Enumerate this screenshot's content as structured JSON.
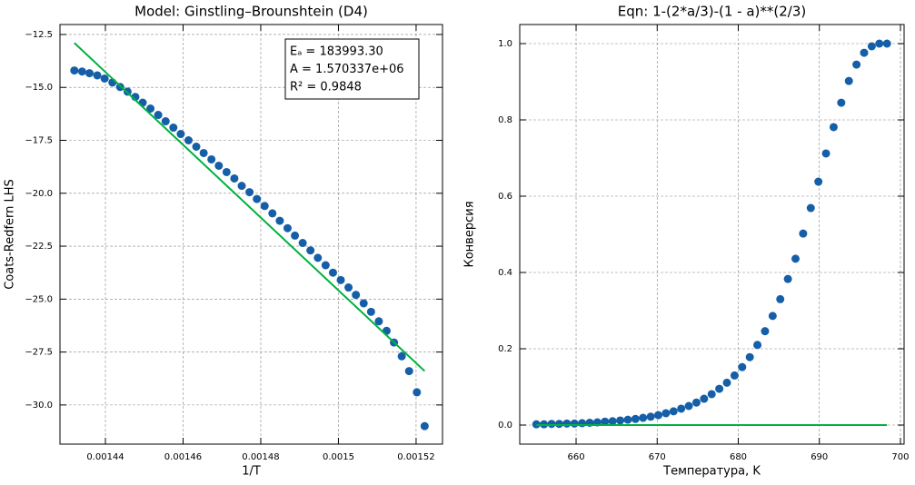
{
  "chart_data": [
    {
      "type": "scatter",
      "title": "Model: Ginstling–Brounshtein (D4)",
      "x_label": "1/T",
      "y_label": "Coats-Redfern LHS",
      "annotation": [
        "Eₐ = 183993.30",
        "A = 1.570337e+06",
        "R² = 0.9848"
      ],
      "xlim": [
        0.0014283,
        0.0015268
      ],
      "ylim": [
        -31.85,
        -12.03
      ],
      "xticks": [
        0.00144,
        0.00146,
        0.00148,
        0.0015,
        0.00152
      ],
      "yticks": [
        {
          "value": -12.5,
          "label": "−12.5"
        },
        {
          "value": -15,
          "label": "−15.0"
        },
        {
          "value": -17.5,
          "label": "−17.5"
        },
        {
          "value": -20,
          "label": "−20.0"
        },
        {
          "value": -22.5,
          "label": "−22.5"
        },
        {
          "value": -25,
          "label": "−25.0"
        },
        {
          "value": -27.5,
          "label": "−27.5"
        },
        {
          "value": -30,
          "label": "−30.0"
        }
      ],
      "grid": true,
      "series": [
        {
          "color": "#155fa8",
          "mode": "markers",
          "x": [
            0.001432,
            0.001434,
            0.0014359,
            0.0014379,
            0.0014398,
            0.0014418,
            0.0014438,
            0.0014457,
            0.0014477,
            0.0014496,
            0.0014516,
            0.0014536,
            0.0014555,
            0.0014575,
            0.0014594,
            0.0014614,
            0.0014634,
            0.0014653,
            0.0014673,
            0.0014692,
            0.0014712,
            0.0014732,
            0.0014751,
            0.0014771,
            0.001479,
            0.001481,
            0.001483,
            0.0014849,
            0.0014869,
            0.0014888,
            0.0014908,
            0.0014928,
            0.0014947,
            0.0014967,
            0.0014986,
            0.0015006,
            0.0015026,
            0.0015045,
            0.0015065,
            0.0015084,
            0.0015104,
            0.0015124,
            0.0015143,
            0.0015163,
            0.0015182,
            0.0015202,
            0.0015222
          ],
          "values": [
            -14.2,
            -14.25,
            -14.33,
            -14.43,
            -14.58,
            -14.77,
            -14.98,
            -15.2,
            -15.45,
            -15.72,
            -16.0,
            -16.3,
            -16.6,
            -16.9,
            -17.2,
            -17.5,
            -17.8,
            -18.1,
            -18.4,
            -18.7,
            -19.0,
            -19.3,
            -19.65,
            -19.95,
            -20.27,
            -20.6,
            -20.95,
            -21.3,
            -21.65,
            -22.0,
            -22.35,
            -22.7,
            -23.05,
            -23.4,
            -23.75,
            -24.1,
            -24.45,
            -24.8,
            -25.2,
            -25.6,
            -26.05,
            -26.5,
            -27.05,
            -27.7,
            -28.4,
            -29.4,
            -31.0
          ]
        },
        {
          "color": "#00b140",
          "mode": "line",
          "x": [
            0.001432,
            0.0015222
          ],
          "values": [
            -12.9,
            -28.4
          ]
        }
      ]
    },
    {
      "type": "scatter",
      "title": "Eqn: 1-(2*a/3)-(1 - a)**(2/3)",
      "x_label": "Температура, K",
      "y_label": "Конверсия",
      "xlim": [
        653.05,
        700.45
      ],
      "ylim": [
        -0.05,
        1.05
      ],
      "xticks": [
        660,
        670,
        680,
        690,
        700
      ],
      "yticks": [
        {
          "value": 0,
          "label": "0.0"
        },
        0.2,
        0.4,
        0.6,
        0.8,
        {
          "value": 1,
          "label": "1.0"
        }
      ],
      "grid": true,
      "series": [
        {
          "color": "#155fa8",
          "mode": "markers",
          "x": [
            655.1,
            656.04,
            656.98,
            657.92,
            658.86,
            659.8,
            660.74,
            661.68,
            662.62,
            663.56,
            664.5,
            665.44,
            666.38,
            667.32,
            668.26,
            669.2,
            670.14,
            671.08,
            672.02,
            672.96,
            673.9,
            674.84,
            675.78,
            676.72,
            677.66,
            678.6,
            679.54,
            680.48,
            681.42,
            682.36,
            683.3,
            684.24,
            685.18,
            686.12,
            687.06,
            688.0,
            688.94,
            689.88,
            690.82,
            691.76,
            692.7,
            693.64,
            694.58,
            695.52,
            696.46,
            697.4,
            698.34
          ],
          "values": [
            0.002,
            0.002,
            0.003,
            0.003,
            0.004,
            0.004,
            0.005,
            0.006,
            0.007,
            0.009,
            0.01,
            0.012,
            0.014,
            0.016,
            0.019,
            0.022,
            0.026,
            0.031,
            0.036,
            0.043,
            0.05,
            0.059,
            0.069,
            0.081,
            0.095,
            0.111,
            0.13,
            0.152,
            0.178,
            0.21,
            0.246,
            0.286,
            0.33,
            0.383,
            0.436,
            0.502,
            0.569,
            0.638,
            0.712,
            0.781,
            0.845,
            0.902,
            0.945,
            0.976,
            0.993,
            1.0,
            1.0
          ]
        },
        {
          "color": "#00b140",
          "mode": "line",
          "x": [
            655.1,
            698.34
          ],
          "values": [
            0,
            0
          ]
        }
      ]
    }
  ]
}
